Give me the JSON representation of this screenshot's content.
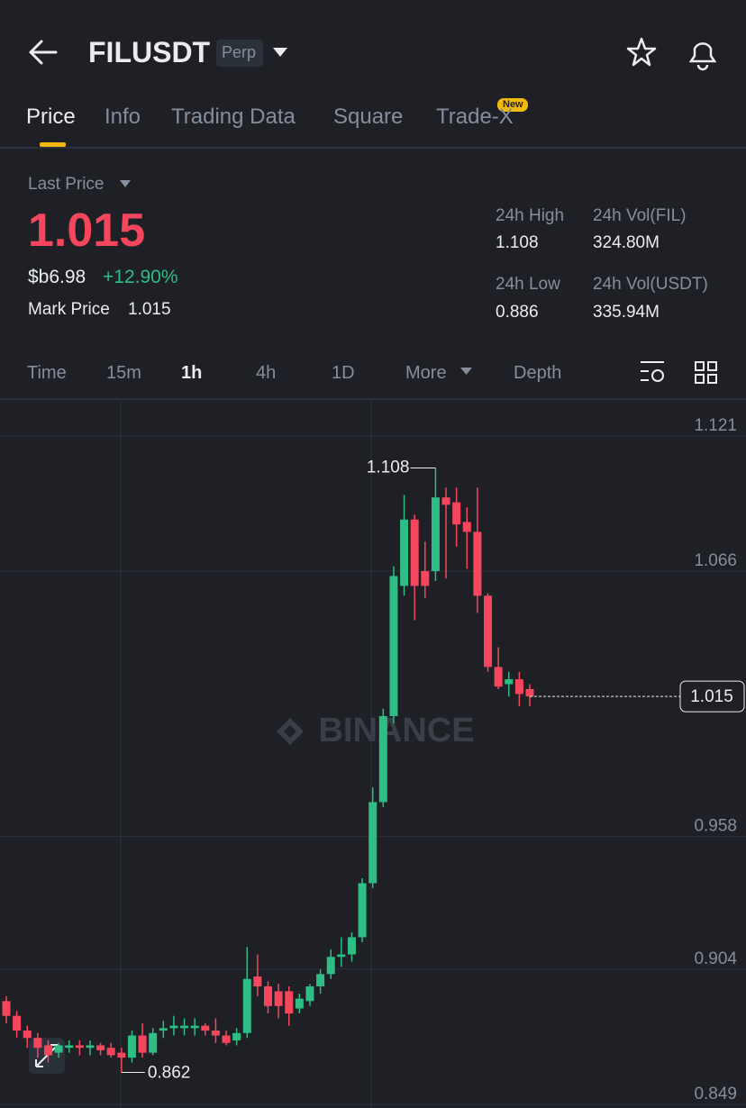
{
  "header": {
    "title": "FILUSDT",
    "badge": "Perp"
  },
  "tabs": [
    "Price",
    "Info",
    "Trading Data",
    "Square",
    "Trade-X"
  ],
  "new_badge": "New",
  "summary": {
    "last_price_label": "Last Price",
    "last_price": "1.015",
    "fiat_price": "$b6.98",
    "change": "+12.90%",
    "mark_price_label": "Mark Price",
    "mark_price": "1.015"
  },
  "stats": [
    {
      "label": "24h High",
      "value": "1.108"
    },
    {
      "label": "24h Vol(FIL)",
      "value": "324.80M"
    },
    {
      "label": "24h Low",
      "value": "0.886"
    },
    {
      "label": "24h Vol(USDT)",
      "value": "335.94M"
    }
  ],
  "intervals": [
    "Time",
    "15m",
    "1h",
    "4h",
    "1D",
    "More",
    "Depth"
  ],
  "chart_data": {
    "type": "candlestick",
    "watermark": "BINANCE",
    "up_color": "#2ebd85",
    "down_color": "#f6465d",
    "ylim": [
      0.8475,
      1.1353
    ],
    "yticks": [
      1.121,
      1.066,
      0.958,
      0.904,
      0.849
    ],
    "grid": true,
    "high_label": 1.108,
    "low_label": 0.862,
    "last_price": 1.015,
    "open": [
      0.891,
      0.885,
      0.879,
      0.876,
      0.873,
      0.87,
      0.872,
      0.873,
      0.872,
      0.873,
      0.872,
      0.87,
      0.868,
      0.877,
      0.87,
      0.879,
      0.88,
      0.88,
      0.88,
      0.881,
      0.879,
      0.877,
      0.875,
      0.878,
      0.901,
      0.897,
      0.895,
      0.895,
      0.888,
      0.891,
      0.897,
      0.902,
      0.909,
      0.91,
      0.917,
      0.939,
      0.972,
      1.007,
      1.06,
      1.087,
      1.066,
      1.066,
      1.096,
      1.094,
      1.086,
      1.082,
      1.056,
      1.027,
      1.02,
      1.022,
      1.018
    ],
    "high": [
      0.893,
      0.887,
      0.881,
      0.878,
      0.875,
      0.874,
      0.875,
      0.875,
      0.875,
      0.874,
      0.874,
      0.872,
      0.879,
      0.882,
      0.88,
      0.883,
      0.885,
      0.884,
      0.884,
      0.882,
      0.884,
      0.879,
      0.88,
      0.913,
      0.91,
      0.899,
      0.898,
      0.897,
      0.894,
      0.898,
      0.904,
      0.912,
      0.917,
      0.919,
      0.941,
      0.978,
      1.01,
      1.068,
      1.097,
      1.089,
      1.078,
      1.108,
      1.1,
      1.1,
      1.092,
      1.1,
      1.057,
      1.035,
      1.025,
      1.025,
      1.02
    ],
    "low": [
      0.882,
      0.876,
      0.872,
      0.868,
      0.866,
      0.868,
      0.87,
      0.869,
      0.869,
      0.869,
      0.868,
      0.862,
      0.866,
      0.868,
      0.869,
      0.876,
      0.877,
      0.877,
      0.877,
      0.877,
      0.874,
      0.873,
      0.873,
      0.876,
      0.893,
      0.886,
      0.884,
      0.881,
      0.886,
      0.889,
      0.894,
      0.9,
      0.905,
      0.907,
      0.915,
      0.937,
      0.97,
      1.004,
      1.056,
      1.046,
      1.055,
      1.062,
      1.063,
      1.076,
      1.067,
      1.049,
      1.025,
      1.018,
      1.015,
      1.011,
      1.011
    ],
    "close": [
      0.885,
      0.879,
      0.876,
      0.872,
      0.869,
      0.873,
      0.873,
      0.872,
      0.873,
      0.871,
      0.869,
      0.868,
      0.877,
      0.87,
      0.878,
      0.88,
      0.881,
      0.881,
      0.881,
      0.879,
      0.877,
      0.874,
      0.878,
      0.9,
      0.897,
      0.889,
      0.889,
      0.886,
      0.892,
      0.897,
      0.902,
      0.909,
      0.91,
      0.917,
      0.939,
      0.972,
      1.007,
      1.064,
      1.087,
      1.06,
      1.06,
      1.096,
      1.093,
      1.085,
      1.082,
      1.056,
      1.027,
      1.019,
      1.022,
      1.016,
      1.015
    ]
  }
}
